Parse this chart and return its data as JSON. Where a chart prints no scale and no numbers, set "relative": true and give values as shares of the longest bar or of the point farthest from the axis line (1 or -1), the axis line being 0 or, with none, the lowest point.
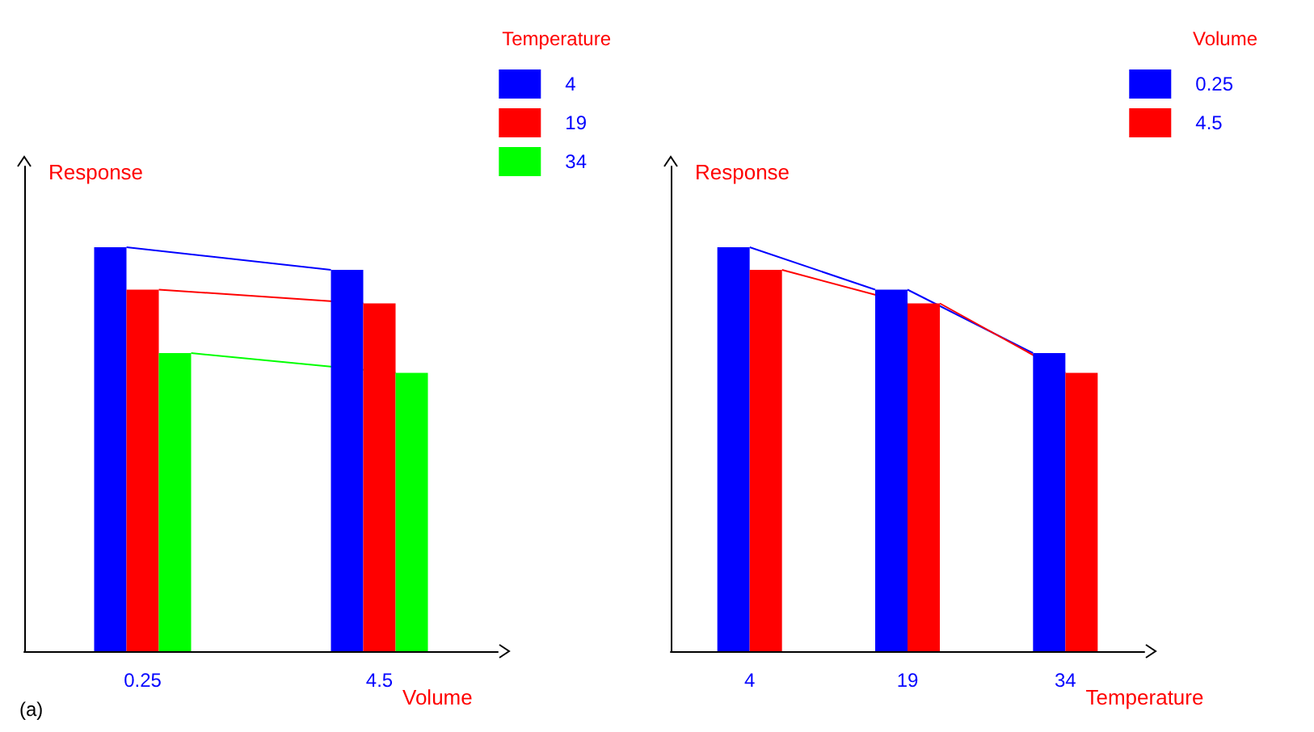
{
  "chart_data": [
    {
      "type": "bar",
      "relative": true,
      "xlabel": "Volume",
      "ylabel": "Response",
      "legend_title": "Temperature",
      "legend": "top right",
      "categories": [
        "0.25",
        "4.5"
      ],
      "annotations": [
        "(a)"
      ],
      "series": [
        {
          "name": "4",
          "color": "#0000ff",
          "values": [
            1,
            0.944
          ]
        },
        {
          "name": "19",
          "color": "#ff0000",
          "values": [
            0.895,
            0.861
          ]
        },
        {
          "name": "34",
          "color": "#00ff00",
          "values": [
            0.738,
            0.689
          ]
        }
      ]
    },
    {
      "type": "bar",
      "relative": true,
      "xlabel": "Temperature",
      "ylabel": "Response",
      "legend_title": "Volume",
      "legend": "top right",
      "categories": [
        "4",
        "19",
        "34"
      ],
      "series": [
        {
          "name": "0.25",
          "color": "#0000ff",
          "values": [
            1,
            0.895,
            0.738
          ]
        },
        {
          "name": "4.5",
          "color": "#ff0000",
          "values": [
            0.944,
            0.861,
            0.689
          ]
        }
      ]
    }
  ]
}
